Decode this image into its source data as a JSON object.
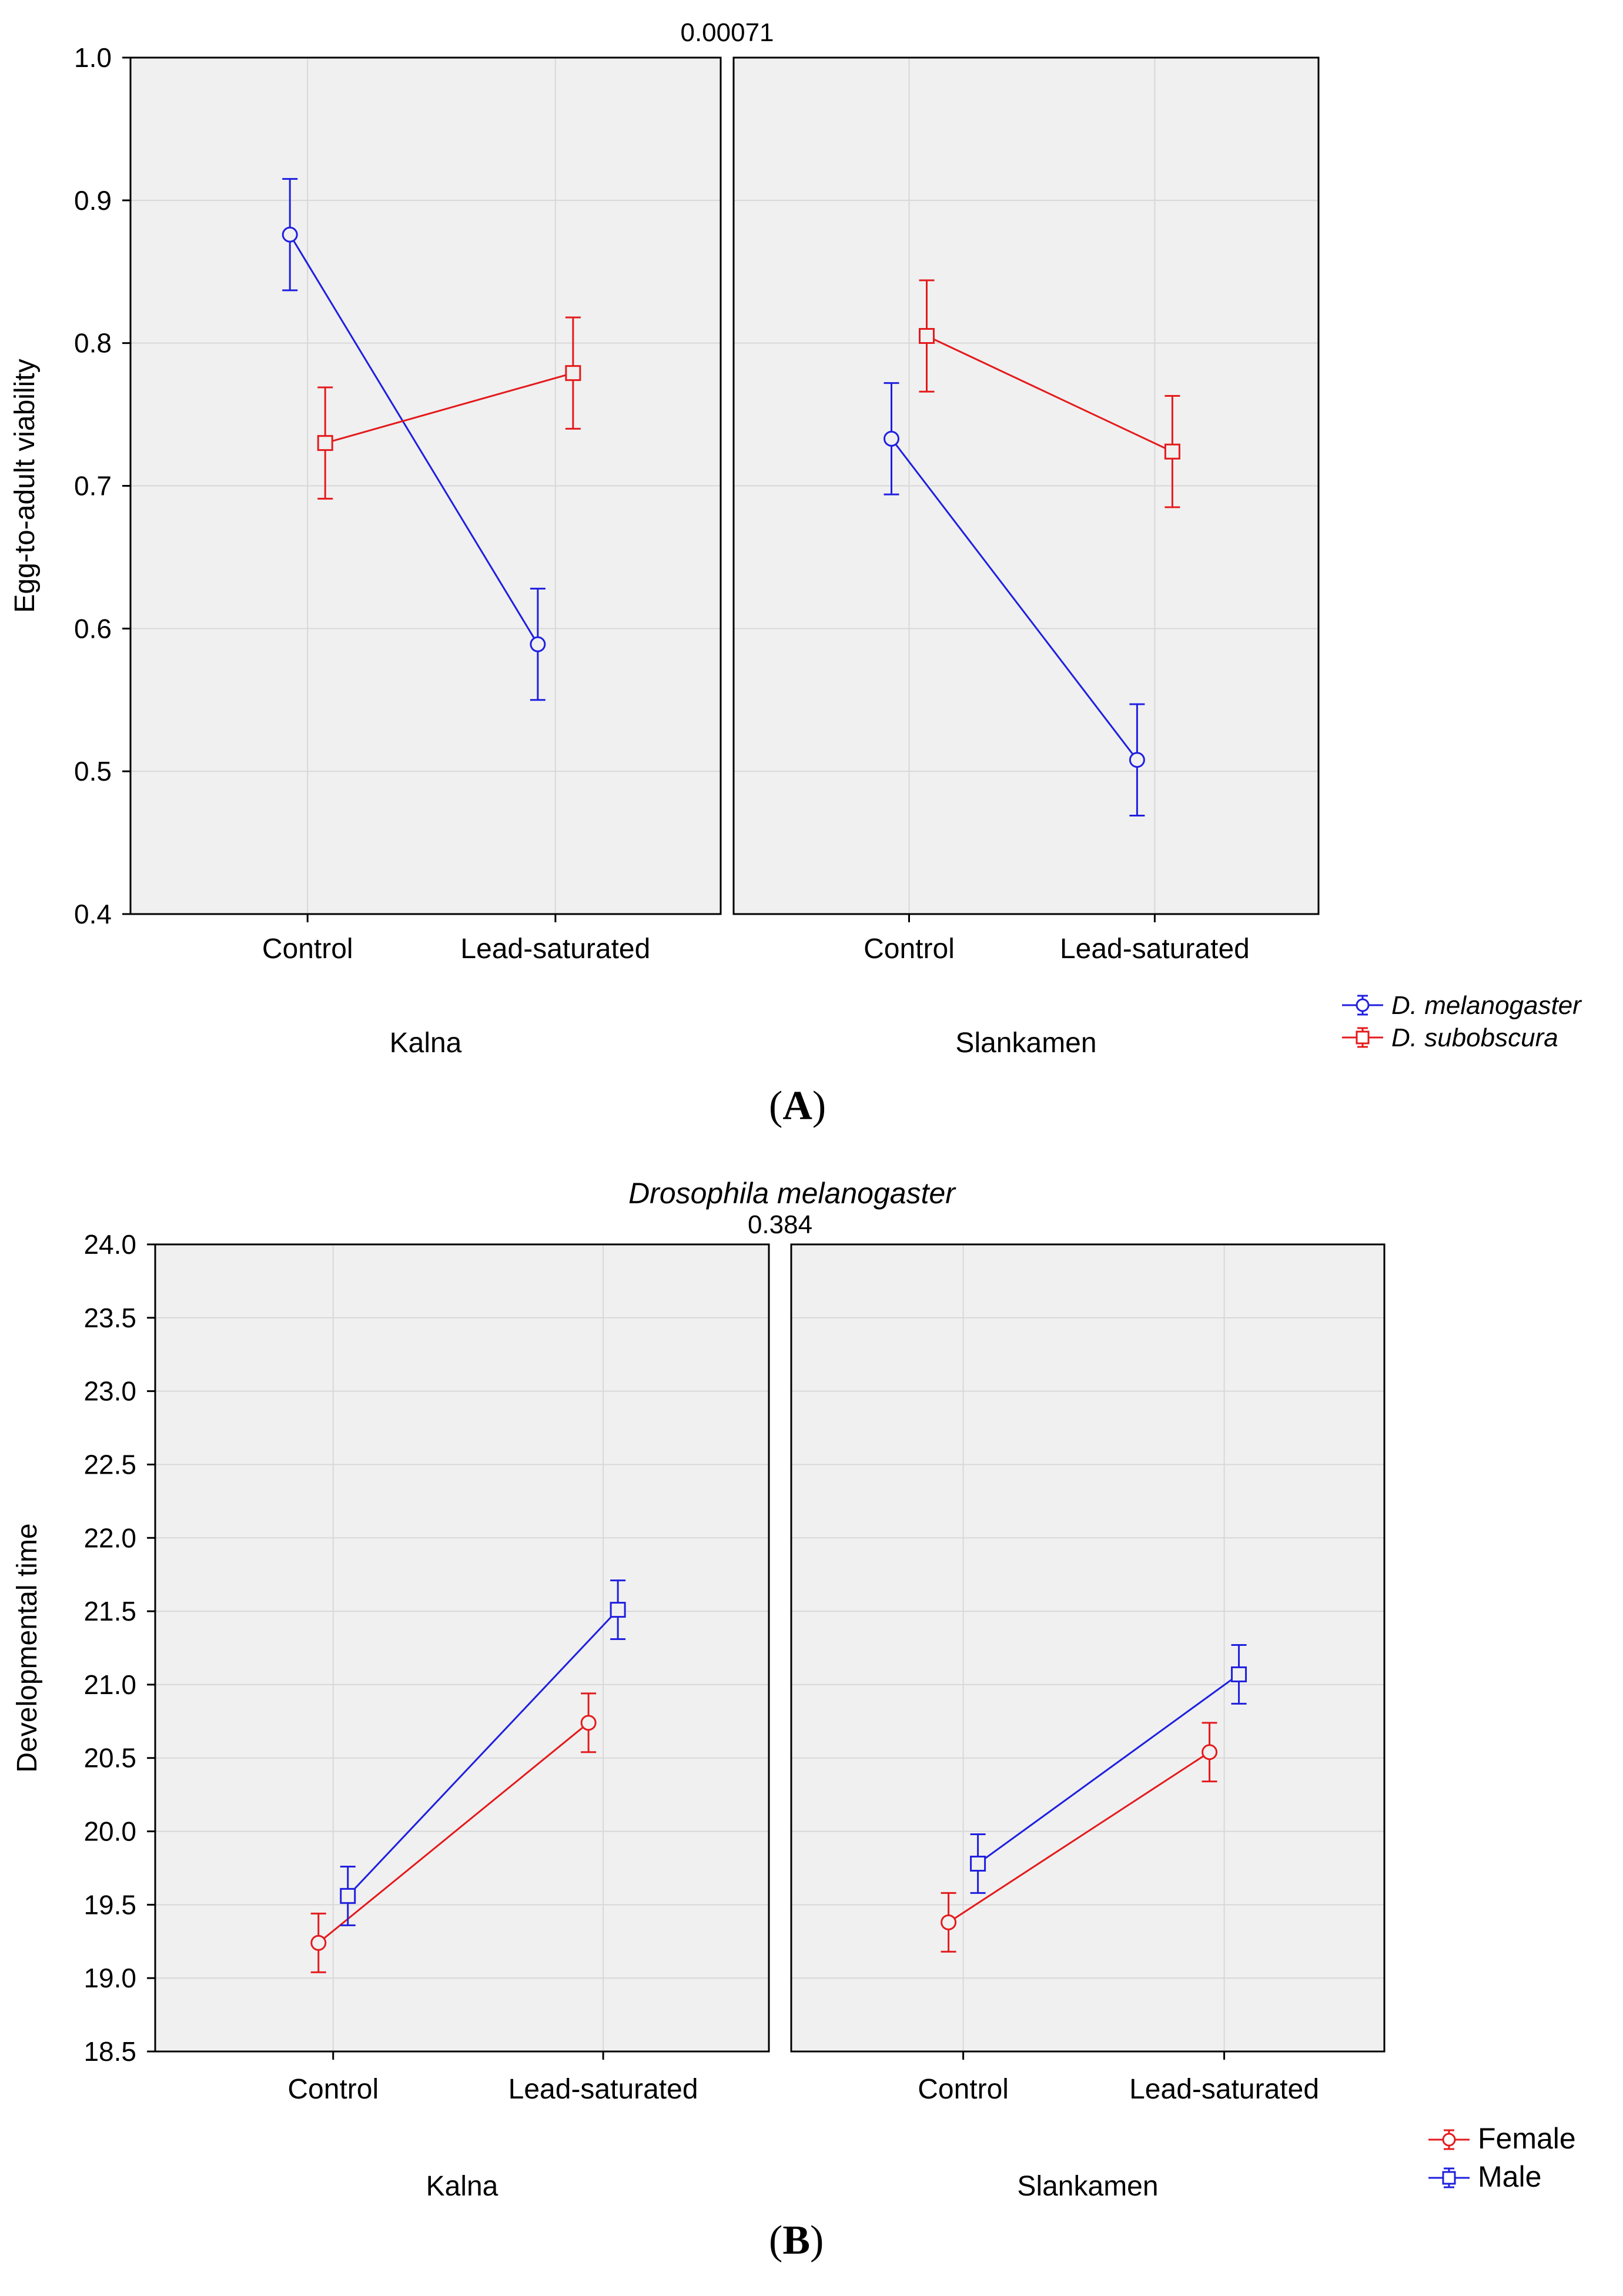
{
  "chart_data": [
    {
      "type": "line",
      "panel_label": "A",
      "title": "",
      "p_value": "0.00071",
      "ylabel": "Egg-to-adult viability",
      "ylim": [
        0.4,
        1.0
      ],
      "yticks": [
        "0.4",
        "0.5",
        "0.6",
        "0.7",
        "0.8",
        "0.9",
        "1.0"
      ],
      "categories": [
        "Control",
        "Lead-saturated"
      ],
      "error_bars": true,
      "grid": true,
      "legend": "bottom-right",
      "facets": [
        {
          "label": "Kalna",
          "series": [
            {
              "name": "D. melanogaster",
              "color": "#1f1fe0",
              "marker": "circle",
              "values": [
                0.876,
                0.589
              ],
              "err": [
                0.039,
                0.039
              ]
            },
            {
              "name": "D. subobscura",
              "color": "#e41a1c",
              "marker": "square",
              "values": [
                0.73,
                0.779
              ],
              "err": [
                0.039,
                0.039
              ]
            }
          ]
        },
        {
          "label": "Slankamen",
          "series": [
            {
              "name": "D. melanogaster",
              "color": "#1f1fe0",
              "marker": "circle",
              "values": [
                0.733,
                0.508
              ],
              "err": [
                0.039,
                0.039
              ]
            },
            {
              "name": "D. subobscura",
              "color": "#e41a1c",
              "marker": "square",
              "values": [
                0.805,
                0.724
              ],
              "err": [
                0.039,
                0.039
              ]
            }
          ]
        }
      ],
      "legend_entries": [
        {
          "name": "D. melanogaster",
          "color": "#1f1fe0",
          "marker": "circle",
          "italic": true
        },
        {
          "name": "D. subobscura",
          "color": "#e41a1c",
          "marker": "square",
          "italic": true
        }
      ]
    },
    {
      "type": "line",
      "panel_label": "B",
      "title": "Drosophila melanogaster",
      "p_value": "0.384",
      "ylabel": "Developmental time",
      "ylim": [
        18.5,
        24.0
      ],
      "yticks": [
        "18.5",
        "19.0",
        "19.5",
        "20.0",
        "20.5",
        "21.0",
        "21.5",
        "22.0",
        "22.5",
        "23.0",
        "23.5",
        "24.0"
      ],
      "categories": [
        "Control",
        "Lead-saturated"
      ],
      "error_bars": true,
      "grid": true,
      "legend": "bottom-right",
      "facets": [
        {
          "label": "Kalna",
          "series": [
            {
              "name": "Female",
              "color": "#e41a1c",
              "marker": "circle",
              "values": [
                19.24,
                20.74
              ],
              "err": [
                0.2,
                0.2
              ]
            },
            {
              "name": "Male",
              "color": "#1f1fe0",
              "marker": "square",
              "values": [
                19.56,
                21.51
              ],
              "err": [
                0.2,
                0.2
              ]
            }
          ]
        },
        {
          "label": "Slankamen",
          "series": [
            {
              "name": "Female",
              "color": "#e41a1c",
              "marker": "circle",
              "values": [
                19.38,
                20.54
              ],
              "err": [
                0.2,
                0.2
              ]
            },
            {
              "name": "Male",
              "color": "#1f1fe0",
              "marker": "square",
              "values": [
                19.78,
                21.07
              ],
              "err": [
                0.2,
                0.2
              ]
            }
          ]
        }
      ],
      "legend_entries": [
        {
          "name": "Female",
          "color": "#e41a1c",
          "marker": "circle",
          "italic": false
        },
        {
          "name": "Male",
          "color": "#1f1fe0",
          "marker": "square",
          "italic": false
        }
      ]
    }
  ]
}
